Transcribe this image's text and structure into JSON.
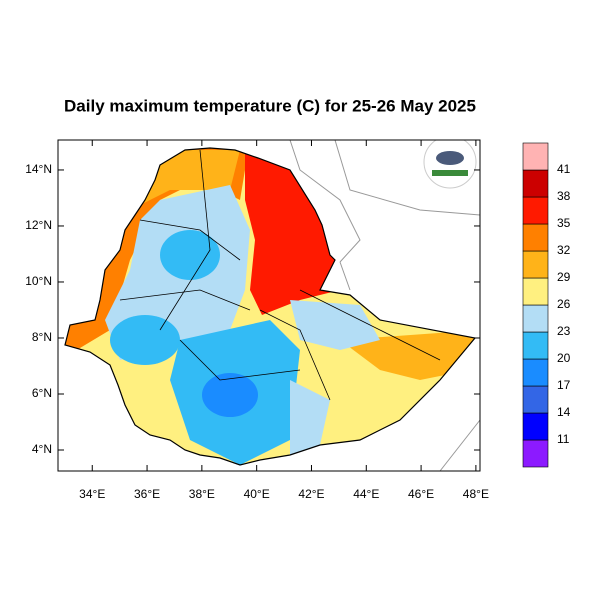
{
  "chart_data": {
    "type": "map",
    "title": "Daily maximum temperature (C) for 25-26 May 2025",
    "xlim": [
      32.75,
      48.15
    ],
    "ylim": [
      3.25,
      15.07
    ],
    "xticks": [
      {
        "value": 34,
        "label": "34°E"
      },
      {
        "value": 36,
        "label": "36°E"
      },
      {
        "value": 38,
        "label": "38°E"
      },
      {
        "value": 40,
        "label": "40°E"
      },
      {
        "value": 42,
        "label": "42°E"
      },
      {
        "value": 44,
        "label": "44°E"
      },
      {
        "value": 46,
        "label": "46°E"
      },
      {
        "value": 48,
        "label": "48°E"
      }
    ],
    "yticks": [
      {
        "value": 4,
        "label": "4°N"
      },
      {
        "value": 6,
        "label": "6°N"
      },
      {
        "value": 8,
        "label": "8°N"
      },
      {
        "value": 10,
        "label": "10°N"
      },
      {
        "value": 12,
        "label": "12°N"
      },
      {
        "value": 14,
        "label": "14°N"
      }
    ],
    "colorbar": {
      "levels": [
        11,
        14,
        17,
        20,
        23,
        26,
        29,
        32,
        35,
        38,
        41
      ],
      "colors": [
        "#8c1aff",
        "#0000ff",
        "#3366e6",
        "#1a8cff",
        "#33bbf5",
        "#b3ddf5",
        "#fff080",
        "#ffb319",
        "#ff8000",
        "#ff1a00",
        "#cc0000",
        "#ffb3b3"
      ]
    }
  }
}
